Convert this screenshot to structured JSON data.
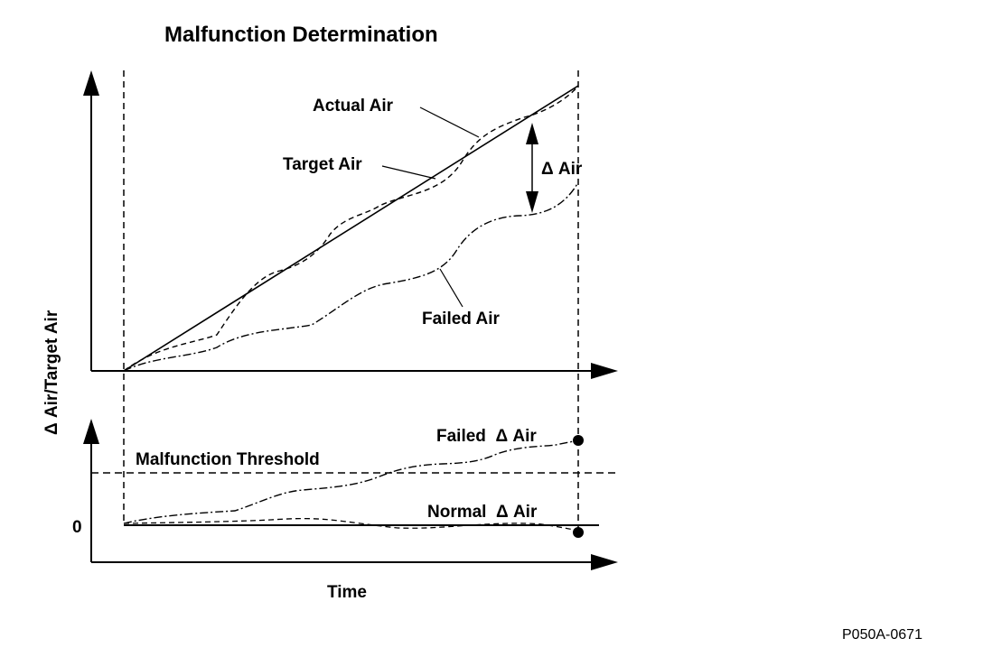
{
  "diagram": {
    "title": "Malfunction Determination",
    "y_axis_label": "Δ Air/Target Air",
    "x_axis_label": "Time",
    "zero_label": "0",
    "figure_id": "P050A-0671",
    "upper_panel": {
      "curves": [
        {
          "name": "Target Air",
          "style": "solid"
        },
        {
          "name": "Actual Air",
          "style": "dashed"
        },
        {
          "name": "Failed Air",
          "style": "dash-dot"
        }
      ],
      "delta_label": "Δ Air"
    },
    "lower_panel": {
      "threshold_label": "Malfunction Threshold",
      "failed_delta_label": "Failed  Δ Air",
      "normal_delta_label": "Normal  Δ Air"
    }
  }
}
